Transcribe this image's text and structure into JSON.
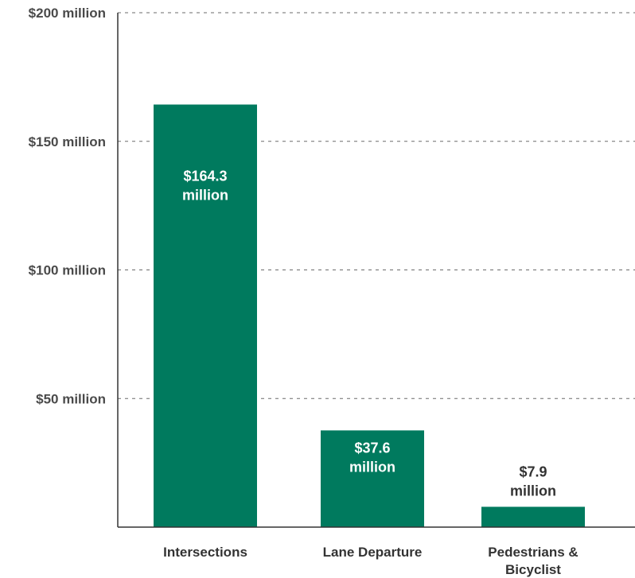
{
  "chart_data": {
    "type": "bar",
    "categories": [
      "Intersections",
      "Lane Departure",
      "Pedestrians & Bicyclist"
    ],
    "category_lines": [
      [
        "Intersections"
      ],
      [
        "Lane Departure"
      ],
      [
        "Pedestrians &",
        "Bicyclist"
      ]
    ],
    "values": [
      164.3,
      37.6,
      7.9
    ],
    "value_labels": [
      [
        "$164.3",
        "million"
      ],
      [
        "$37.6",
        "million"
      ],
      [
        "$7.9",
        "million"
      ]
    ],
    "yticks": [
      {
        "value": 50,
        "label": "$50 million"
      },
      {
        "value": 100,
        "label": "$100 million"
      },
      {
        "value": 150,
        "label": "$150 million"
      },
      {
        "value": 200,
        "label": "$200 million"
      }
    ],
    "ylim": [
      0,
      200
    ],
    "grid": true,
    "grid_style": "dashed",
    "colors": {
      "bar": "#007a5e",
      "label_inside": "#ffffff",
      "label_outside": "#333333",
      "grid": "#6b6b6b",
      "axis": "#333333"
    }
  }
}
